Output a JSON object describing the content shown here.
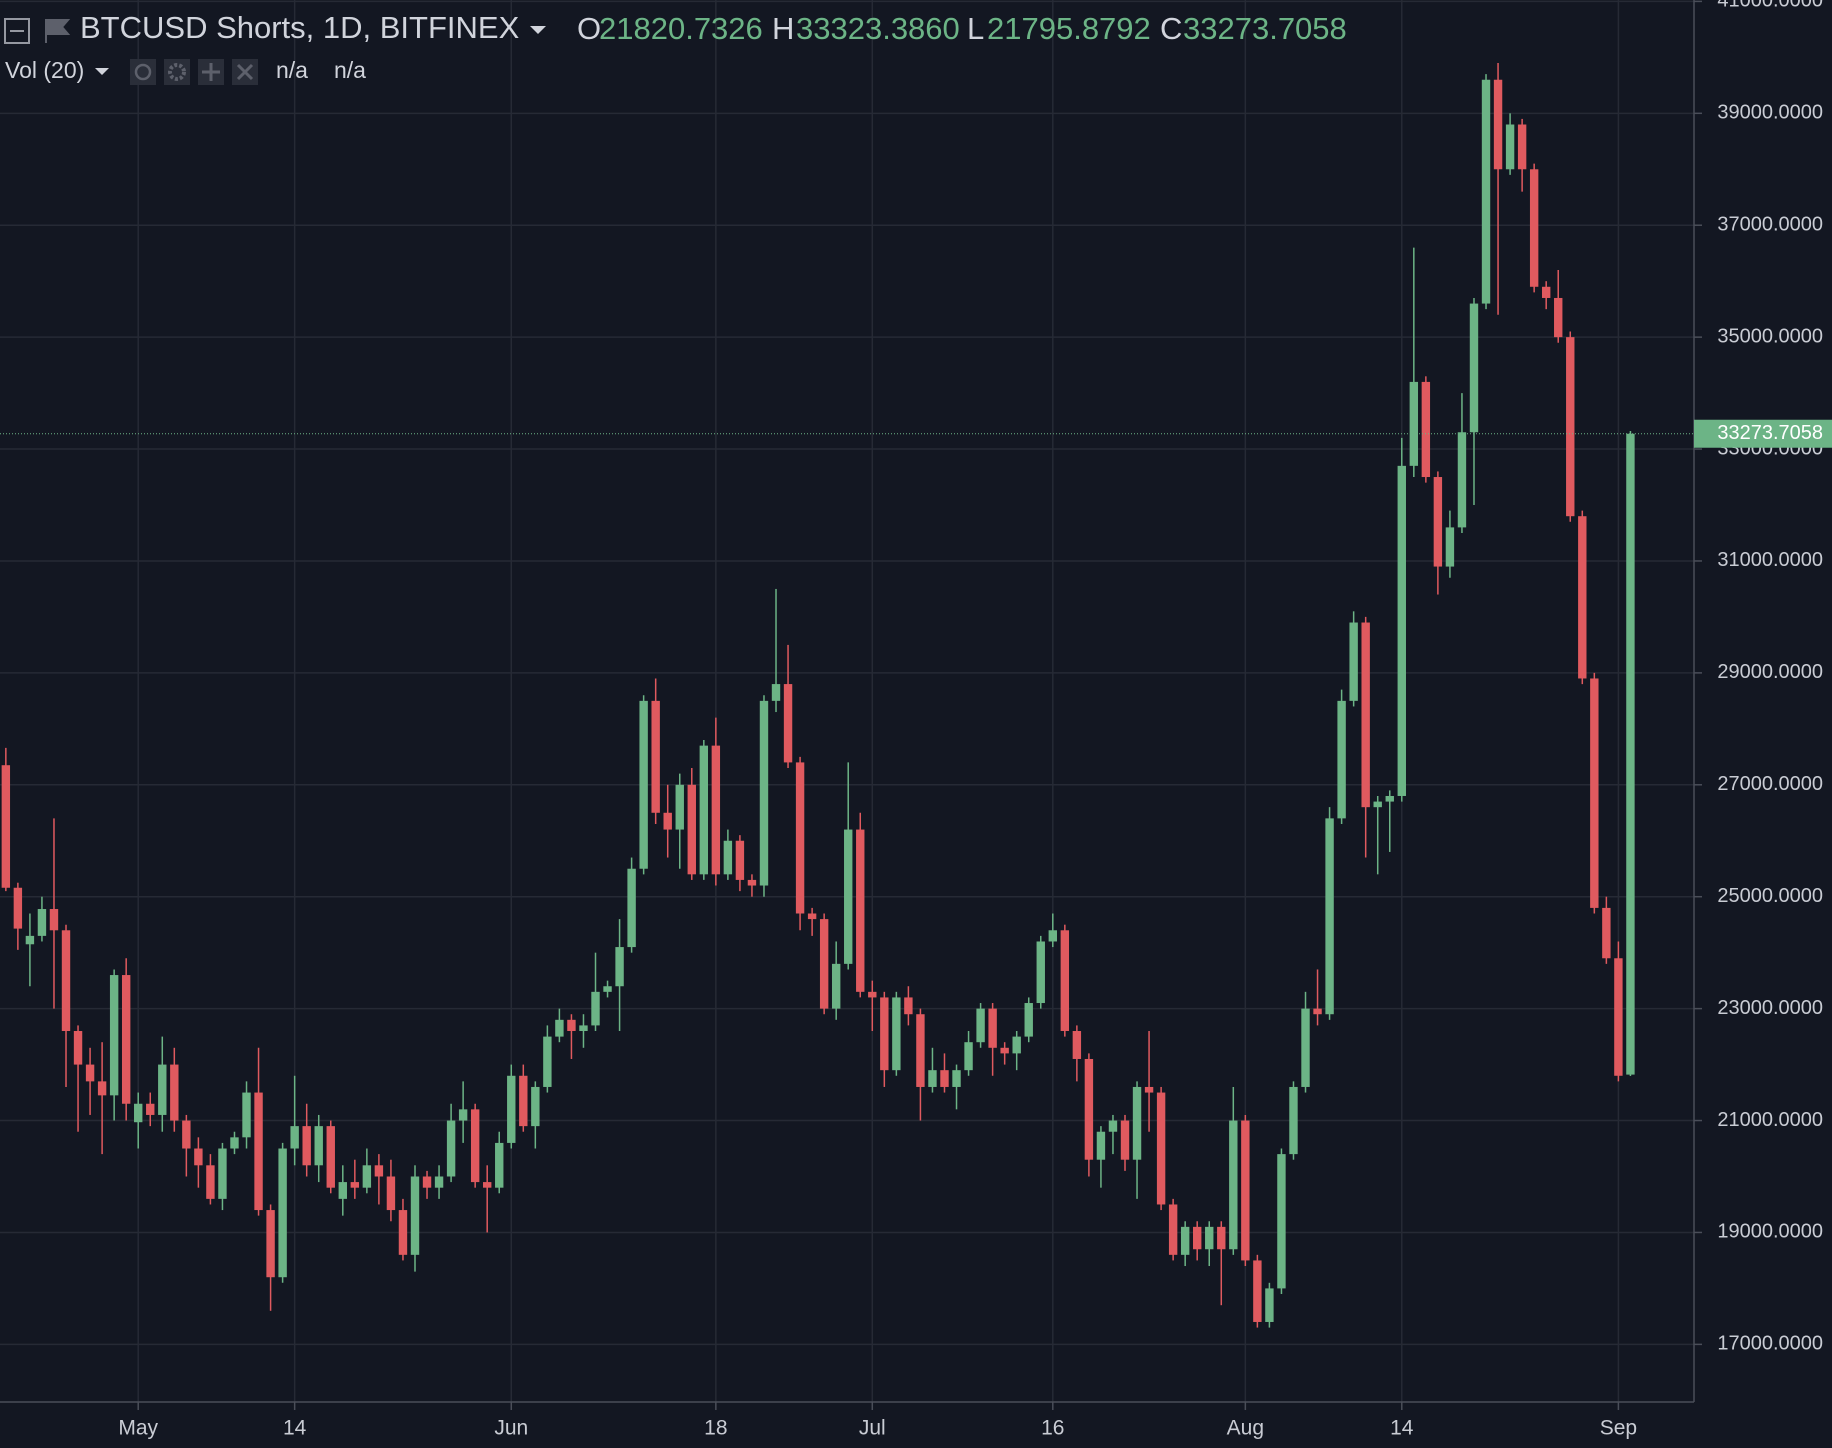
{
  "chart_data": {
    "type": "candlestick",
    "title": "BTCUSD Shorts, 1D, BITFINEX",
    "ohlc_legend": [
      {
        "name": "O",
        "value": "21820.7326"
      },
      {
        "name": "H",
        "value": "33323.3860"
      },
      {
        "name": "L",
        "value": "21795.8792"
      },
      {
        "name": "C",
        "value": "33273.7058"
      }
    ],
    "indicator": {
      "name": "Vol (20)",
      "values": [
        "n/a",
        "n/a"
      ]
    },
    "up_color": "#6cb486",
    "down_color": "#e05a5f",
    "grid": true,
    "last_price": 33273.7058,
    "open": [
      27350,
      25160,
      24150,
      24300,
      24780,
      24400,
      22600,
      22000,
      21700,
      21450,
      23600,
      20970,
      21300,
      21100,
      22000,
      21000,
      20500,
      20200,
      19600,
      20500,
      20700,
      21500,
      19400,
      18200,
      20500,
      20900,
      20200,
      20900,
      19600,
      19900,
      19800,
      20200,
      20000,
      19400,
      18600,
      20000,
      19800,
      20000,
      21000,
      21200,
      19900,
      19800,
      20600,
      21800,
      20900,
      21600,
      22500,
      22800,
      22600,
      22700,
      23300,
      23400,
      24100,
      25500,
      28500,
      26500,
      26200,
      27000,
      25400,
      27700,
      25400,
      26000,
      25300,
      25200,
      28500,
      28800,
      27400,
      24700,
      24600,
      23000,
      23800,
      26200,
      23300,
      23200,
      21900,
      23200,
      22900,
      21600,
      21900,
      21600,
      21900,
      22400,
      23000,
      22300,
      22200,
      22500,
      23100,
      24200,
      24400,
      22600,
      22100,
      20300,
      20800,
      21000,
      20300,
      21600,
      21500,
      19500,
      18600,
      19100,
      18700,
      19100,
      18700,
      21000,
      18500,
      17400,
      18000,
      20400,
      21600,
      23000,
      22900,
      26400,
      28500,
      29900,
      26600,
      26700,
      26800,
      32700,
      34200,
      32500,
      30900,
      31600,
      33300,
      35600,
      39600,
      38000,
      38800,
      38000,
      35900,
      35700,
      35000,
      31800,
      28900,
      24800,
      23900,
      21820.7326
    ],
    "high": [
      27660,
      25250,
      24700,
      25000,
      26400,
      24500,
      22700,
      22300,
      22400,
      23700,
      23900,
      21500,
      21500,
      22500,
      22300,
      21100,
      20700,
      20400,
      20600,
      20800,
      21700,
      22300,
      19500,
      20600,
      21800,
      21300,
      21100,
      21000,
      20200,
      20300,
      20500,
      20400,
      20300,
      19600,
      20200,
      20100,
      20200,
      21300,
      21700,
      21300,
      20200,
      20800,
      22000,
      22000,
      21700,
      22700,
      23000,
      22900,
      22900,
      24000,
      23500,
      24600,
      25700,
      28600,
      28900,
      27000,
      27200,
      27300,
      27800,
      28200,
      26200,
      26100,
      25400,
      28600,
      30500,
      29500,
      27500,
      24800,
      24700,
      24200,
      27400,
      26500,
      23500,
      23300,
      23300,
      23400,
      23000,
      22300,
      22200,
      22000,
      22600,
      23100,
      23100,
      22400,
      22600,
      23200,
      24300,
      24700,
      24500,
      22700,
      22200,
      20900,
      21100,
      21100,
      21700,
      22600,
      21600,
      19600,
      19200,
      19200,
      19200,
      19200,
      21600,
      21100,
      18600,
      18100,
      20500,
      21700,
      23300,
      23700,
      26600,
      28700,
      30100,
      30000,
      26800,
      26900,
      33200,
      36600,
      34300,
      32600,
      31900,
      34000,
      35700,
      39700,
      39900,
      39000,
      38900,
      38100,
      36000,
      36200,
      35100,
      31900,
      29000,
      25000,
      24200,
      33323.386
    ],
    "low": [
      25100,
      24050,
      23400,
      24200,
      23000,
      21600,
      20800,
      21100,
      20400,
      21000,
      21000,
      20500,
      20900,
      20800,
      20800,
      20000,
      19800,
      19500,
      19400,
      20400,
      20500,
      19300,
      17600,
      18100,
      20200,
      20000,
      19900,
      19700,
      19300,
      19600,
      19700,
      19500,
      19200,
      18500,
      18300,
      19600,
      19600,
      19900,
      20600,
      19800,
      19000,
      19700,
      20500,
      20800,
      20500,
      21500,
      22400,
      22100,
      22300,
      22600,
      23200,
      22600,
      24000,
      25400,
      26300,
      25700,
      25500,
      25300,
      25300,
      25200,
      25300,
      25100,
      25000,
      25000,
      28300,
      27300,
      24400,
      24300,
      22900,
      22800,
      23700,
      23200,
      22600,
      21600,
      21800,
      22700,
      21000,
      21500,
      21500,
      21200,
      21800,
      22300,
      21800,
      22000,
      21900,
      22400,
      23000,
      24100,
      22500,
      21700,
      20000,
      19800,
      20400,
      20100,
      19600,
      20800,
      19400,
      18500,
      18400,
      18500,
      18400,
      17700,
      18600,
      18400,
      17300,
      17300,
      17900,
      20300,
      21500,
      22700,
      22800,
      26300,
      28400,
      25700,
      25400,
      25800,
      26700,
      32500,
      32400,
      30400,
      30700,
      31500,
      32000,
      35500,
      35400,
      37900,
      37600,
      35800,
      35500,
      34900,
      31700,
      28800,
      24700,
      23800,
      21700,
      21795.8792
    ],
    "close": [
      25160,
      24430,
      24300,
      24780,
      24400,
      22600,
      22000,
      21700,
      21450,
      23600,
      21300,
      21300,
      21100,
      22000,
      21000,
      20500,
      20200,
      19600,
      20500,
      20700,
      21500,
      19400,
      18200,
      20500,
      20900,
      20200,
      20900,
      19800,
      19900,
      19800,
      20200,
      20000,
      19400,
      18600,
      20000,
      19800,
      20000,
      21000,
      21200,
      19900,
      19800,
      20600,
      21800,
      20900,
      21600,
      22500,
      22800,
      22600,
      22700,
      23300,
      23400,
      24100,
      25500,
      28500,
      26500,
      26200,
      27000,
      25400,
      27700,
      25400,
      26000,
      25300,
      25200,
      28500,
      28800,
      27400,
      24700,
      24600,
      23000,
      23800,
      26200,
      23300,
      23200,
      21900,
      23200,
      22900,
      21600,
      21900,
      21600,
      21900,
      22400,
      23000,
      22300,
      22200,
      22500,
      23100,
      24200,
      24400,
      22600,
      22100,
      20300,
      20800,
      21000,
      20300,
      21600,
      21500,
      19500,
      18600,
      19100,
      18700,
      19100,
      18700,
      21000,
      18500,
      17400,
      18000,
      20400,
      21600,
      23000,
      22900,
      26400,
      28500,
      29900,
      26600,
      26700,
      26800,
      32700,
      34200,
      32500,
      30900,
      31600,
      33300,
      35600,
      39600,
      38000,
      38800,
      38000,
      35900,
      35700,
      35000,
      31800,
      28900,
      24800,
      23900,
      21800,
      33273.7058
    ],
    "xticks": [
      {
        "value": 11,
        "label": "May"
      },
      {
        "value": 24,
        "label": "14"
      },
      {
        "value": 42,
        "label": "Jun"
      },
      {
        "value": 59,
        "label": "18"
      },
      {
        "value": 72,
        "label": "Jul"
      },
      {
        "value": 87,
        "label": "16"
      },
      {
        "value": 103,
        "label": "Aug"
      },
      {
        "value": 116,
        "label": "14"
      },
      {
        "value": 134,
        "label": "Sep"
      }
    ],
    "ylim": [
      15970,
      41025
    ],
    "yticks": [
      {
        "value": 17000,
        "label": "17000.0000"
      },
      {
        "value": 19000,
        "label": "19000.0000"
      },
      {
        "value": 21000,
        "label": "21000.0000"
      },
      {
        "value": 23000,
        "label": "23000.0000"
      },
      {
        "value": 25000,
        "label": "25000.0000"
      },
      {
        "value": 27000,
        "label": "27000.0000"
      },
      {
        "value": 29000,
        "label": "29000.0000"
      },
      {
        "value": 31000,
        "label": "31000.0000"
      },
      {
        "value": 33000,
        "label": "33000.0000"
      },
      {
        "value": 35000,
        "label": "35000.0000"
      },
      {
        "value": 37000,
        "label": "37000.0000"
      },
      {
        "value": 39000,
        "label": "39000.0000"
      },
      {
        "value": 41000,
        "label": "41000.0000"
      }
    ]
  }
}
